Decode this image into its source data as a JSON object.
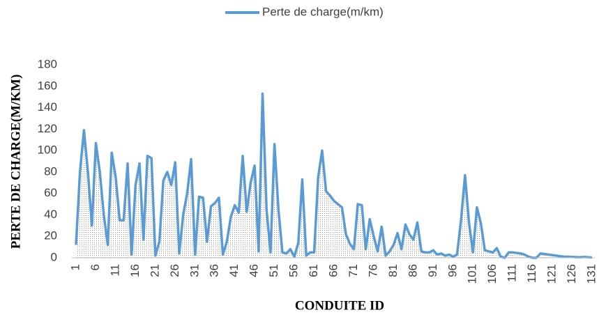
{
  "chart_data": {
    "type": "line",
    "legend_position": "top",
    "x_label": "CONDUITE ID",
    "y_label": "PERTE DE CHARGE(M/KM)",
    "categories": [
      1,
      null,
      null,
      null,
      null,
      6,
      null,
      null,
      null,
      null,
      11,
      null,
      null,
      null,
      null,
      16,
      null,
      null,
      null,
      null,
      21,
      null,
      null,
      null,
      null,
      26,
      null,
      null,
      null,
      null,
      31,
      null,
      null,
      null,
      null,
      36,
      null,
      null,
      null,
      null,
      41,
      null,
      null,
      null,
      null,
      46,
      null,
      null,
      null,
      null,
      51,
      null,
      null,
      null,
      null,
      56,
      null,
      null,
      null,
      null,
      61,
      null,
      null,
      null,
      null,
      66,
      null,
      null,
      null,
      null,
      71,
      null,
      null,
      null,
      null,
      76,
      null,
      null,
      null,
      null,
      81,
      null,
      null,
      null,
      null,
      86,
      null,
      null,
      null,
      null,
      91,
      null,
      null,
      null,
      null,
      96,
      null,
      null,
      null,
      null,
      101,
      null,
      null,
      null,
      null,
      106,
      null,
      null,
      null,
      null,
      111,
      null,
      null,
      null,
      null,
      116,
      null,
      null,
      null,
      null,
      121,
      null,
      null,
      null,
      null,
      126,
      null,
      null,
      null,
      null,
      131
    ],
    "series": [
      {
        "name": "Perte de charge(m/km)",
        "color": "#5b9bd5",
        "values": [
          12,
          80,
          119,
          80,
          30,
          107,
          80,
          40,
          12,
          98,
          75,
          35,
          35,
          88,
          3,
          68,
          88,
          17,
          95,
          93,
          2,
          15,
          72,
          80,
          68,
          89,
          4,
          40,
          60,
          92,
          3,
          57,
          56,
          15,
          48,
          51,
          56,
          3,
          15,
          38,
          49,
          42,
          95,
          43,
          70,
          86,
          6,
          153,
          45,
          5,
          106,
          45,
          5,
          4,
          8,
          1,
          14,
          73,
          2,
          5,
          5,
          75,
          100,
          62,
          58,
          53,
          50,
          47,
          22,
          13,
          8,
          50,
          49,
          8,
          36,
          20,
          6,
          29,
          2,
          6,
          12,
          23,
          8,
          31,
          22,
          17,
          33,
          6,
          5,
          5,
          7,
          3,
          4,
          2,
          3,
          1,
          3,
          35,
          77,
          33,
          5,
          47,
          32,
          7,
          6,
          5,
          9,
          1,
          0,
          5,
          5,
          4.5,
          4,
          3,
          1,
          0,
          0,
          4,
          3.5,
          3,
          2.5,
          2,
          1.5,
          1,
          1,
          0.8,
          0.6,
          0.5,
          0.8,
          0.5,
          0.3
        ]
      }
    ],
    "ylim": [
      0,
      180
    ],
    "yticks": [
      0,
      20,
      40,
      60,
      80,
      100,
      120,
      140,
      160,
      180
    ],
    "grid": false
  }
}
